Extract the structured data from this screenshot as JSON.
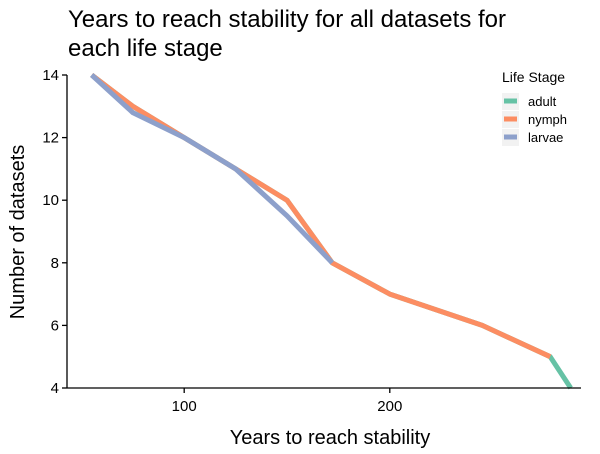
{
  "chart_data": {
    "type": "line",
    "title_lines": [
      "Years to reach stability for all datasets for",
      "each life stage"
    ],
    "xlabel": "Years to reach stability",
    "ylabel": "Number of datasets",
    "xlim": [
      43,
      293
    ],
    "ylim": [
      4,
      14
    ],
    "x_ticks": [
      100,
      200
    ],
    "y_ticks": [
      4,
      6,
      8,
      10,
      12,
      14
    ],
    "grid": false,
    "legend": {
      "title": "Life Stage",
      "placement": "top-right"
    },
    "series": [
      {
        "name": "adult",
        "color": "#66C2A5",
        "x": [
          55,
          75,
          100,
          125,
          150,
          172,
          200,
          245,
          278,
          288
        ],
        "y": [
          14,
          13,
          12,
          11,
          10,
          8,
          7,
          6,
          5,
          4
        ]
      },
      {
        "name": "nymph",
        "color": "#FC8D62",
        "x": [
          55,
          75,
          100,
          125,
          150,
          172,
          200,
          245,
          278
        ],
        "y": [
          14,
          13,
          12,
          11,
          10,
          8,
          7,
          6,
          5
        ]
      },
      {
        "name": "larvae",
        "color": "#8DA0CB",
        "x": [
          55,
          75,
          100,
          125,
          150,
          172
        ],
        "y": [
          14,
          12.8,
          12,
          11,
          9.5,
          8
        ]
      }
    ]
  }
}
